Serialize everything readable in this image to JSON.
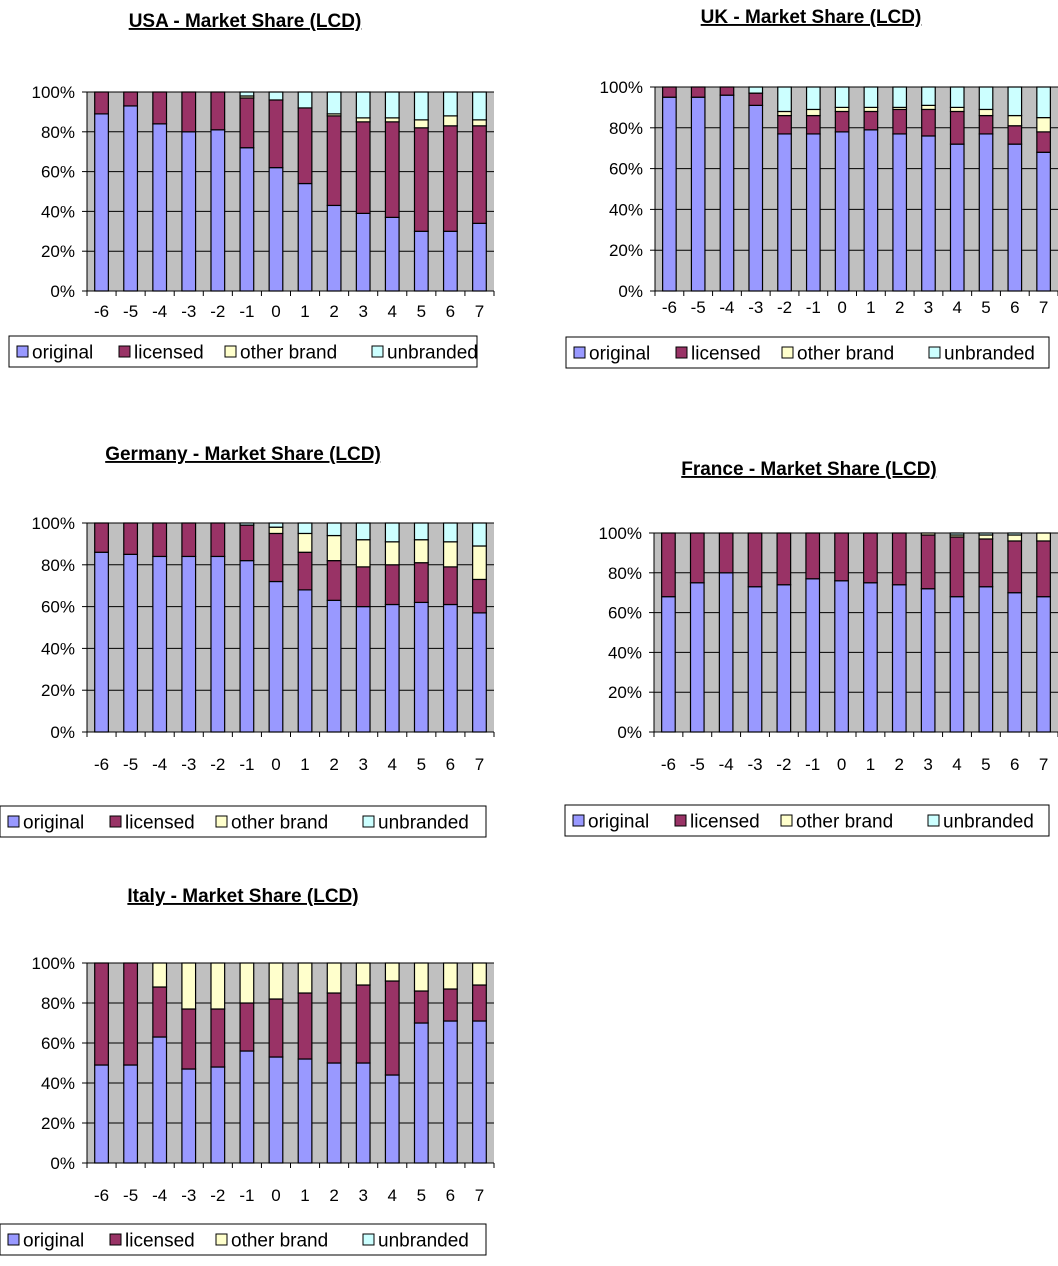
{
  "legend": {
    "items": [
      {
        "name": "original",
        "color": "#9999ff"
      },
      {
        "name": "licensed",
        "color": "#993366"
      },
      {
        "name": "other brand",
        "color": "#ffffcc"
      },
      {
        "name": "unbranded",
        "color": "#ccffff"
      }
    ]
  },
  "colors": {
    "plot_background": "#c0c0c0",
    "gridline": "#000000",
    "bar_outline": "#000000"
  },
  "chart_data": [
    {
      "type": "bar",
      "stacked": true,
      "percent": true,
      "title": "USA - Market Share (LCD)",
      "categories": [
        "-6",
        "-5",
        "-4",
        "-3",
        "-2",
        "-1",
        "0",
        "1",
        "2",
        "3",
        "4",
        "5",
        "6",
        "7"
      ],
      "y_ticks": [
        "0%",
        "20%",
        "40%",
        "60%",
        "80%",
        "100%"
      ],
      "ylim": [
        0,
        100
      ],
      "grid": true,
      "legend_position": "bottom",
      "series": [
        {
          "name": "original",
          "values": [
            89,
            93,
            84,
            80,
            81,
            72,
            62,
            54,
            43,
            39,
            37,
            30,
            30,
            34
          ]
        },
        {
          "name": "licensed",
          "values": [
            11,
            7,
            16,
            20,
            19,
            25,
            34,
            38,
            45,
            46,
            48,
            52,
            53,
            49
          ]
        },
        {
          "name": "other brand",
          "values": [
            0,
            0,
            0,
            0,
            0,
            1,
            0,
            0,
            1,
            2,
            2,
            4,
            5,
            3
          ]
        },
        {
          "name": "unbranded",
          "values": [
            0,
            0,
            0,
            0,
            0,
            2,
            4,
            8,
            11,
            13,
            13,
            14,
            12,
            14
          ]
        }
      ]
    },
    {
      "type": "bar",
      "stacked": true,
      "percent": true,
      "title": "UK - Market Share (LCD)",
      "categories": [
        "-6",
        "-5",
        "-4",
        "-3",
        "-2",
        "-1",
        "0",
        "1",
        "2",
        "3",
        "4",
        "5",
        "6",
        "7"
      ],
      "y_ticks": [
        "0%",
        "20%",
        "40%",
        "60%",
        "80%",
        "100%"
      ],
      "ylim": [
        0,
        100
      ],
      "grid": true,
      "legend_position": "bottom",
      "series": [
        {
          "name": "original",
          "values": [
            95,
            95,
            96,
            91,
            77,
            77,
            78,
            79,
            77,
            76,
            72,
            77,
            72,
            68
          ]
        },
        {
          "name": "licensed",
          "values": [
            5,
            5,
            4,
            6,
            9,
            9,
            10,
            9,
            12,
            13,
            16,
            9,
            9,
            10
          ]
        },
        {
          "name": "other brand",
          "values": [
            0,
            0,
            0,
            0,
            2,
            3,
            2,
            2,
            1,
            2,
            2,
            3,
            5,
            7
          ]
        },
        {
          "name": "unbranded",
          "values": [
            0,
            0,
            0,
            3,
            12,
            11,
            10,
            10,
            10,
            9,
            10,
            11,
            14,
            15
          ]
        }
      ]
    },
    {
      "type": "bar",
      "stacked": true,
      "percent": true,
      "title": "Germany -  Market Share (LCD)",
      "categories": [
        "-6",
        "-5",
        "-4",
        "-3",
        "-2",
        "-1",
        "0",
        "1",
        "2",
        "3",
        "4",
        "5",
        "6",
        "7"
      ],
      "y_ticks": [
        "0%",
        "20%",
        "40%",
        "60%",
        "80%",
        "100%"
      ],
      "ylim": [
        0,
        100
      ],
      "grid": true,
      "legend_position": "bottom",
      "series": [
        {
          "name": "original",
          "values": [
            86,
            85,
            84,
            84,
            84,
            82,
            72,
            68,
            63,
            60,
            61,
            62,
            61,
            57
          ]
        },
        {
          "name": "licensed",
          "values": [
            14,
            15,
            16,
            16,
            16,
            17,
            23,
            18,
            19,
            19,
            19,
            19,
            18,
            16
          ]
        },
        {
          "name": "other brand",
          "values": [
            0,
            0,
            0,
            0,
            0,
            0,
            3,
            9,
            12,
            13,
            11,
            11,
            12,
            16
          ]
        },
        {
          "name": "unbranded",
          "values": [
            0,
            0,
            0,
            0,
            0,
            1,
            2,
            5,
            6,
            8,
            9,
            8,
            9,
            11
          ]
        }
      ]
    },
    {
      "type": "bar",
      "stacked": true,
      "percent": true,
      "title": "France - Market Share (LCD)",
      "categories": [
        "-6",
        "-5",
        "-4",
        "-3",
        "-2",
        "-1",
        "0",
        "1",
        "2",
        "3",
        "4",
        "5",
        "6",
        "7"
      ],
      "y_ticks": [
        "0%",
        "20%",
        "40%",
        "60%",
        "80%",
        "100%"
      ],
      "ylim": [
        0,
        100
      ],
      "grid": true,
      "legend_position": "bottom",
      "series": [
        {
          "name": "original",
          "values": [
            68,
            75,
            80,
            73,
            74,
            77,
            76,
            75,
            74,
            72,
            68,
            73,
            70,
            68
          ]
        },
        {
          "name": "licensed",
          "values": [
            32,
            25,
            20,
            27,
            26,
            23,
            24,
            25,
            26,
            27,
            30,
            24,
            26,
            28
          ]
        },
        {
          "name": "other brand",
          "values": [
            0,
            0,
            0,
            0,
            0,
            0,
            0,
            0,
            0,
            1,
            1,
            2,
            3,
            4
          ]
        },
        {
          "name": "unbranded",
          "values": [
            0,
            0,
            0,
            0,
            0,
            0,
            0,
            0,
            0,
            0,
            1,
            1,
            1,
            0
          ]
        }
      ]
    },
    {
      "type": "bar",
      "stacked": true,
      "percent": true,
      "title": "Italy - Market Share (LCD)",
      "categories": [
        "-6",
        "-5",
        "-4",
        "-3",
        "-2",
        "-1",
        "0",
        "1",
        "2",
        "3",
        "4",
        "5",
        "6",
        "7"
      ],
      "y_ticks": [
        "0%",
        "20%",
        "40%",
        "60%",
        "80%",
        "100%"
      ],
      "ylim": [
        0,
        100
      ],
      "grid": true,
      "legend_position": "bottom",
      "series": [
        {
          "name": "original",
          "values": [
            49,
            49,
            63,
            47,
            48,
            56,
            53,
            52,
            50,
            50,
            44,
            70,
            71,
            71
          ]
        },
        {
          "name": "licensed",
          "values": [
            51,
            51,
            25,
            30,
            29,
            24,
            29,
            33,
            35,
            39,
            47,
            16,
            16,
            18
          ]
        },
        {
          "name": "other brand",
          "values": [
            0,
            0,
            12,
            23,
            23,
            20,
            18,
            15,
            15,
            11,
            9,
            14,
            13,
            11
          ]
        },
        {
          "name": "unbranded",
          "values": [
            0,
            0,
            0,
            0,
            0,
            0,
            0,
            0,
            0,
            0,
            0,
            0,
            0,
            0
          ]
        }
      ]
    }
  ]
}
